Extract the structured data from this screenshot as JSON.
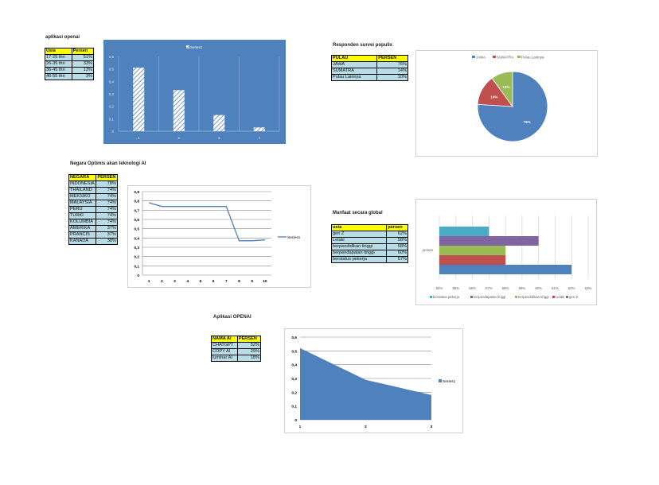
{
  "sections": [
    {
      "title": "aplikasi openai",
      "headers": [
        "Usia",
        "Persen"
      ],
      "rows": [
        [
          "17-25 thn",
          "51%"
        ],
        [
          "26-35 thn",
          "33%"
        ],
        [
          "36-45 thn",
          "13%"
        ],
        [
          "46-55 thn",
          "3%"
        ]
      ]
    },
    {
      "title": "Responden survei populix",
      "headers": [
        "PULAU",
        "PERSEN"
      ],
      "rows": [
        [
          "JAWA",
          "76%"
        ],
        [
          "SUMATRA",
          "14%"
        ],
        [
          "Pulau Lainnya",
          "10%"
        ]
      ]
    },
    {
      "title": "Negara Optimis akan teknologi AI",
      "headers": [
        "NEGARA",
        "PERSEN"
      ],
      "rows": [
        [
          "INDONESIA",
          "78%"
        ],
        [
          "THAILAND",
          "74%"
        ],
        [
          "MEKSIKO",
          "74%"
        ],
        [
          "MALAYSIA",
          "74%"
        ],
        [
          "PERU",
          "74%"
        ],
        [
          "TURKI",
          "74%"
        ],
        [
          "KOLUMBIA",
          "74%"
        ],
        [
          "AMERIKA",
          "37%"
        ],
        [
          "PRANCIS",
          "37%"
        ],
        [
          "KANADA",
          "38%"
        ]
      ]
    },
    {
      "title": "Manfaat secara global",
      "headers": [
        "usia",
        "persen"
      ],
      "rows": [
        [
          "gen Z",
          "62%"
        ],
        [
          "Lelaki",
          "58%"
        ],
        [
          "berpendidikan tinggi",
          "58%"
        ],
        [
          "berpendapatan tinggi",
          "60%"
        ],
        [
          "berstatus pekerja",
          "57%"
        ]
      ]
    },
    {
      "title": "Aplikasi OPENAI",
      "headers": [
        "NAMA AI",
        "PERSEN"
      ],
      "rows": [
        [
          "CHATGPT",
          "52%"
        ],
        [
          "COPY AI",
          "29%"
        ],
        [
          "luminar AI",
          "18%"
        ]
      ]
    }
  ],
  "chart_data": [
    {
      "type": "bar",
      "title": "",
      "legend": [
        "Series1"
      ],
      "legend_position": "top",
      "categories": [
        "1",
        "2",
        "3",
        "4"
      ],
      "values": [
        0.51,
        0.33,
        0.13,
        0.03
      ],
      "ylim": [
        0,
        0.6
      ],
      "yticks": [
        "0",
        "0,1",
        "0,2",
        "0,3",
        "0,4",
        "0,5",
        "0,6"
      ],
      "background": "#4f81bd"
    },
    {
      "type": "pie",
      "labels": [
        "JAWA",
        "SUMATRA",
        "Pulau Lainnya"
      ],
      "values": [
        76,
        14,
        10
      ],
      "data_labels": [
        "76%",
        "14%",
        "10%"
      ],
      "colors": [
        "#4f81bd",
        "#c0504d",
        "#9bbb59"
      ],
      "legend_position": "top"
    },
    {
      "type": "line",
      "legend": [
        "Series1"
      ],
      "legend_position": "right",
      "x": [
        "1",
        "2",
        "3",
        "4",
        "5",
        "6",
        "7",
        "8",
        "9",
        "10"
      ],
      "values": [
        0.78,
        0.74,
        0.74,
        0.74,
        0.74,
        0.74,
        0.74,
        0.37,
        0.37,
        0.38
      ],
      "ylim": [
        0,
        0.9
      ],
      "yticks": [
        "0",
        "0,1",
        "0,2",
        "0,3",
        "0,4",
        "0,5",
        "0,6",
        "0,7",
        "0,8",
        "0,9"
      ],
      "color": "#4f81bd"
    },
    {
      "type": "bar",
      "orientation": "horizontal",
      "category": "persen",
      "series": [
        {
          "name": "gen Z",
          "value": 62,
          "color": "#4f81bd"
        },
        {
          "name": "Lelaki",
          "value": 58,
          "color": "#c0504d"
        },
        {
          "name": "berpendidikan tinggi",
          "value": 58,
          "color": "#9bbb59"
        },
        {
          "name": "berpendapatan tinggi",
          "value": 60,
          "color": "#8064a2"
        },
        {
          "name": "berstatus pekerja",
          "value": 57,
          "color": "#4bacc6"
        }
      ],
      "xlim": [
        54,
        63
      ],
      "xticks": [
        "54%",
        "55%",
        "56%",
        "57%",
        "58%",
        "59%",
        "60%",
        "61%",
        "62%",
        "63%"
      ],
      "legend_position": "bottom"
    },
    {
      "type": "area",
      "legend": [
        "Series1"
      ],
      "legend_position": "right",
      "x": [
        "1",
        "2",
        "3"
      ],
      "values": [
        0.52,
        0.29,
        0.18
      ],
      "ylim": [
        0,
        0.6
      ],
      "yticks": [
        "0",
        "0,1",
        "0,2",
        "0,3",
        "0,4",
        "0,5",
        "0,6"
      ],
      "color": "#4f81bd"
    }
  ]
}
